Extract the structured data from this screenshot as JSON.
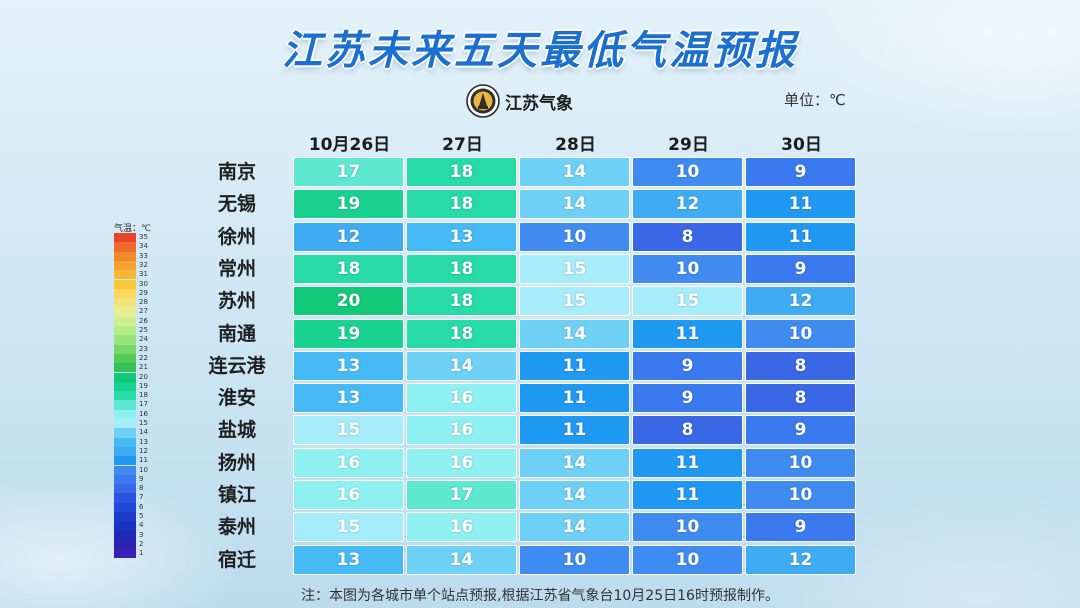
{
  "title": "江苏未来五天最低气温预报",
  "logo_text": "江苏气象",
  "unit_label": "单位：℃",
  "footnote": "注：本图为各城市单个站点预报,根据江苏省气象台10月25日16时预报制作。",
  "legend": {
    "title": "气温：℃",
    "levels": [
      35,
      34,
      33,
      32,
      31,
      30,
      29,
      28,
      27,
      26,
      25,
      24,
      23,
      22,
      21,
      20,
      19,
      18,
      17,
      16,
      15,
      14,
      13,
      12,
      11,
      10,
      9,
      8,
      7,
      6,
      5,
      4,
      3,
      2,
      1
    ],
    "colors": {
      "35": "#e8432b",
      "34": "#ee6a2a",
      "33": "#f28a2c",
      "32": "#f5a030",
      "31": "#f7b634",
      "30": "#f9c73c",
      "29": "#fbd65a",
      "28": "#f2e27a",
      "27": "#e6ee92",
      "26": "#cdf08e",
      "25": "#b4ec86",
      "24": "#98e47a",
      "23": "#76d86a",
      "22": "#52cc52",
      "21": "#35c25a",
      "20": "#12c97a",
      "19": "#19d28f",
      "18": "#26dba6",
      "17": "#5ee8d2",
      "16": "#8ef0f0",
      "15": "#a6ecfa",
      "14": "#6fd0f6",
      "13": "#45baf5",
      "12": "#3fabf2",
      "11": "#1f98f2",
      "10": "#3f8bf0",
      "9": "#3b79ee",
      "8": "#3a67e6",
      "7": "#2a55e2",
      "6": "#2248d8",
      "5": "#1e3ccc",
      "4": "#1c32c0",
      "3": "#1f2ab4",
      "2": "#2c24b0",
      "1": "#3a20b6"
    }
  },
  "chart_data": {
    "type": "table",
    "title": "江苏未来五天最低气温预报",
    "unit": "℃",
    "columns": [
      "10月26日",
      "27日",
      "28日",
      "29日",
      "30日"
    ],
    "rows": [
      {
        "city": "南京",
        "values": [
          17,
          18,
          14,
          10,
          9
        ]
      },
      {
        "city": "无锡",
        "values": [
          19,
          18,
          14,
          12,
          11
        ]
      },
      {
        "city": "徐州",
        "values": [
          12,
          13,
          10,
          8,
          11
        ]
      },
      {
        "city": "常州",
        "values": [
          18,
          18,
          15,
          10,
          9
        ]
      },
      {
        "city": "苏州",
        "values": [
          20,
          18,
          15,
          15,
          12
        ]
      },
      {
        "city": "南通",
        "values": [
          19,
          18,
          14,
          11,
          10
        ]
      },
      {
        "city": "连云港",
        "values": [
          13,
          14,
          11,
          9,
          8
        ]
      },
      {
        "city": "淮安",
        "values": [
          13,
          16,
          11,
          9,
          8
        ]
      },
      {
        "city": "盐城",
        "values": [
          15,
          16,
          11,
          8,
          9
        ]
      },
      {
        "city": "扬州",
        "values": [
          16,
          16,
          14,
          11,
          10
        ]
      },
      {
        "city": "镇江",
        "values": [
          16,
          17,
          14,
          11,
          10
        ]
      },
      {
        "city": "泰州",
        "values": [
          15,
          16,
          14,
          10,
          9
        ]
      },
      {
        "city": "宿迁",
        "values": [
          13,
          14,
          10,
          10,
          12
        ]
      }
    ]
  }
}
